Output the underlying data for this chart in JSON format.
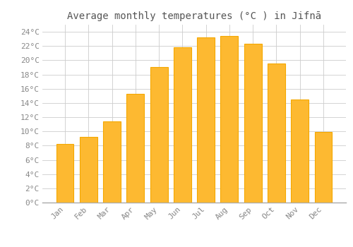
{
  "title": "Average monthly temperatures (°C ) in Jifnā",
  "months": [
    "Jan",
    "Feb",
    "Mar",
    "Apr",
    "May",
    "Jun",
    "Jul",
    "Aug",
    "Sep",
    "Oct",
    "Nov",
    "Dec"
  ],
  "values": [
    8.2,
    9.2,
    11.4,
    15.3,
    19.0,
    21.8,
    23.2,
    23.4,
    22.3,
    19.5,
    14.5,
    9.9
  ],
  "bar_color": "#FDB931",
  "bar_edge_color": "#F5A800",
  "background_color": "#FFFFFF",
  "plot_bg_color": "#FFFFFF",
  "grid_color": "#CCCCCC",
  "ylim": [
    0,
    25
  ],
  "ytick_step": 2,
  "title_fontsize": 10,
  "tick_fontsize": 8,
  "tick_color": "#888888",
  "title_color": "#555555"
}
